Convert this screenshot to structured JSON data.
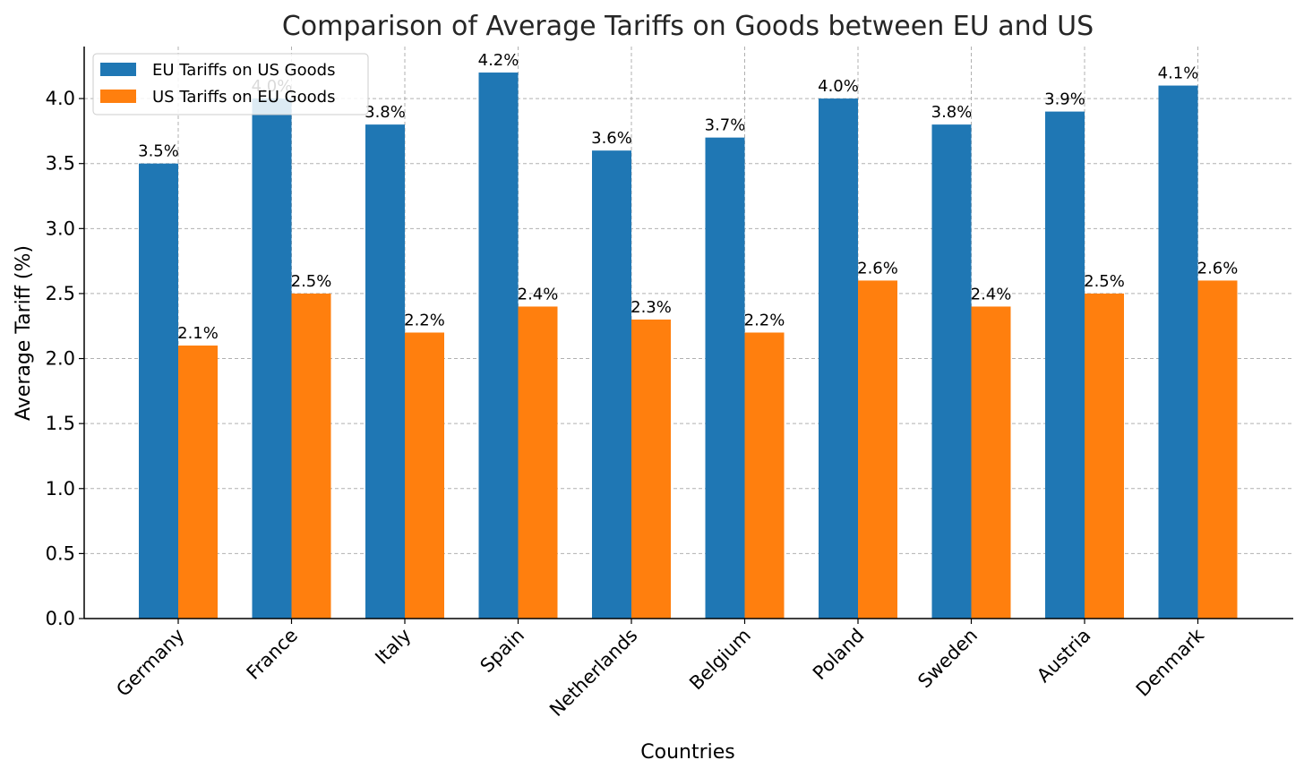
{
  "chart_data": {
    "type": "bar",
    "title": "Comparison of Average Tariffs on Goods between EU and US",
    "xlabel": "Countries",
    "ylabel": "Average Tariff (%)",
    "ylim": [
      0,
      4.4
    ],
    "yticks": [
      0.0,
      0.5,
      1.0,
      1.5,
      2.0,
      2.5,
      3.0,
      3.5,
      4.0
    ],
    "grid": true,
    "legend_position": "top-left",
    "categories": [
      "Germany",
      "France",
      "Italy",
      "Spain",
      "Netherlands",
      "Belgium",
      "Poland",
      "Sweden",
      "Austria",
      "Denmark"
    ],
    "series": [
      {
        "name": "EU Tariffs on US Goods",
        "color": "#1f77b4",
        "values": [
          3.5,
          4.0,
          3.8,
          4.2,
          3.6,
          3.7,
          4.0,
          3.8,
          3.9,
          4.1
        ]
      },
      {
        "name": "US Tariffs on EU Goods",
        "color": "#ff7f0e",
        "values": [
          2.1,
          2.5,
          2.2,
          2.4,
          2.3,
          2.2,
          2.6,
          2.4,
          2.5,
          2.6
        ]
      }
    ]
  }
}
